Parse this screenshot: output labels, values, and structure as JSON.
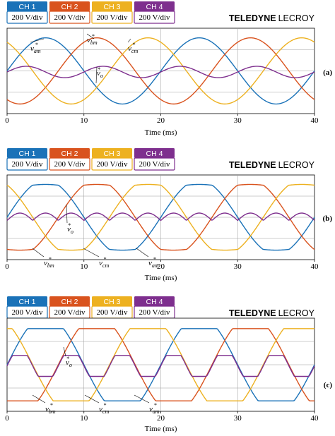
{
  "figure": {
    "brand_bold": "TELEDYNE",
    "brand_light": "LECROY"
  },
  "colors": {
    "ch1": "#1a72b8",
    "ch2": "#d9531e",
    "ch3": "#edb120",
    "ch4": "#7e2f8e"
  },
  "chart_data": [
    {
      "type": "line",
      "panel_label": "(a)",
      "channels": [
        {
          "name": "CH 1",
          "scale": "200 V/div"
        },
        {
          "name": "CH 2",
          "scale": "200 V/div"
        },
        {
          "name": "CH 3",
          "scale": "200 V/div"
        },
        {
          "name": "CH 4",
          "scale": "200 V/div"
        }
      ],
      "xlabel": "Time (ms)",
      "xlim": [
        0,
        40
      ],
      "xticks": [
        "0",
        "10",
        "20",
        "30",
        "40"
      ],
      "annotations": [
        {
          "base": "v",
          "sub": "am",
          "sup": "*"
        },
        {
          "base": "v",
          "sub": "bm",
          "sup": "*"
        },
        {
          "base": "v",
          "sub": "cm",
          "sup": "*"
        },
        {
          "base": "v",
          "sub": "o",
          "sup": "*"
        }
      ],
      "series": [
        {
          "channel": "CH 1",
          "waveform": "sine",
          "frequency_hz": 50,
          "phase_deg": 0,
          "amplitude_div": 1.5,
          "offset_div": 0
        },
        {
          "channel": "CH 2",
          "waveform": "sine",
          "frequency_hz": 50,
          "phase_deg": -120,
          "amplitude_div": 1.5,
          "offset_div": 0
        },
        {
          "channel": "CH 3",
          "waveform": "sine",
          "frequency_hz": 50,
          "phase_deg": 120,
          "amplitude_div": 1.5,
          "offset_div": 0
        },
        {
          "channel": "CH 4",
          "waveform": "sine",
          "frequency_hz": 100,
          "phase_deg": 0,
          "amplitude_div": 0.4,
          "offset_div": 0.2
        }
      ]
    },
    {
      "type": "line",
      "panel_label": "(b)",
      "channels": [
        {
          "name": "CH 1",
          "scale": "200 V/div"
        },
        {
          "name": "CH 2",
          "scale": "200 V/div"
        },
        {
          "name": "CH 3",
          "scale": "200 V/div"
        },
        {
          "name": "CH 4",
          "scale": "200 V/div"
        }
      ],
      "xlabel": "Time (ms)",
      "xlim": [
        0,
        40
      ],
      "xticks": [
        "0",
        "10",
        "20",
        "30",
        "40"
      ],
      "annotations": [
        {
          "base": "v",
          "sub": "o",
          "sup": "*"
        },
        {
          "base": "v",
          "sub": "bm",
          "sup": "*"
        },
        {
          "base": "v",
          "sub": "cm",
          "sup": "*"
        },
        {
          "base": "v",
          "sub": "am",
          "sup": "*"
        }
      ],
      "series": [
        {
          "channel": "CH 1",
          "waveform": "sine-clamped",
          "frequency_hz": 50,
          "phase_deg": 0
        },
        {
          "channel": "CH 2",
          "waveform": "sine-clamped",
          "frequency_hz": 50,
          "phase_deg": -120
        },
        {
          "channel": "CH 3",
          "waveform": "sine-clamped",
          "frequency_hz": 50,
          "phase_deg": 120
        },
        {
          "channel": "CH 4",
          "waveform": "triplen-ripple",
          "frequency_hz": 150
        }
      ]
    },
    {
      "type": "line",
      "panel_label": "(c)",
      "channels": [
        {
          "name": "CH 1",
          "scale": "200 V/div"
        },
        {
          "name": "CH 2",
          "scale": "200 V/div"
        },
        {
          "name": "CH 3",
          "scale": "200 V/div"
        },
        {
          "name": "CH 4",
          "scale": "200 V/div"
        }
      ],
      "xlabel": "Time (ms)",
      "xlim": [
        0,
        40
      ],
      "xticks": [
        "0",
        "10",
        "20",
        "30",
        "40"
      ],
      "annotations": [
        {
          "base": "v",
          "sub": "o",
          "sup": "*"
        },
        {
          "base": "v",
          "sub": "bm",
          "sup": "*"
        },
        {
          "base": "v",
          "sub": "cm",
          "sup": "*"
        },
        {
          "base": "v",
          "sub": "am",
          "sup": "*"
        }
      ],
      "series": [
        {
          "channel": "CH 1",
          "waveform": "trapezoid-clamped",
          "frequency_hz": 50,
          "phase_deg": 0
        },
        {
          "channel": "CH 2",
          "waveform": "trapezoid-clamped",
          "frequency_hz": 50,
          "phase_deg": -120
        },
        {
          "channel": "CH 3",
          "waveform": "trapezoid-clamped",
          "frequency_hz": 50,
          "phase_deg": 120
        },
        {
          "channel": "CH 4",
          "waveform": "triplen-trapezoid",
          "frequency_hz": 150
        }
      ]
    }
  ]
}
